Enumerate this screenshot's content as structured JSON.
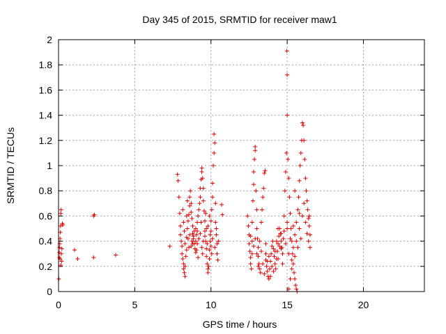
{
  "chart_data": {
    "type": "scatter",
    "title": "Day 345 of 2015, SRMTID for receiver maw1",
    "xlabel": "GPS time / hours",
    "ylabel": "SRMTID / TECUs",
    "xlim": [
      0,
      24
    ],
    "ylim": [
      0,
      2
    ],
    "xticks": [
      "0",
      "5",
      "10",
      "15",
      "20"
    ],
    "yticks": [
      "0",
      "0.2",
      "0.4",
      "0.6",
      "0.8",
      "1",
      "1.2",
      "1.4",
      "1.6",
      "1.8",
      "2"
    ],
    "xtick_values": [
      0,
      5,
      10,
      15,
      20
    ],
    "ytick_values": [
      0,
      0.2,
      0.4,
      0.6,
      0.8,
      1,
      1.2,
      1.4,
      1.6,
      1.8,
      2
    ],
    "grid": true,
    "marker": "plus",
    "color": "#e00000",
    "series": [
      {
        "points": [
          [
            0.02,
            0.1
          ],
          [
            0.05,
            0.27
          ],
          [
            0.07,
            0.35
          ],
          [
            0.08,
            0.38
          ],
          [
            0.1,
            0.42
          ],
          [
            0.12,
            0.47
          ],
          [
            0.13,
            0.52
          ],
          [
            0.15,
            0.62
          ],
          [
            0.17,
            0.65
          ],
          [
            0.18,
            0.3
          ],
          [
            0.2,
            0.24
          ],
          [
            0.22,
            0.34
          ],
          [
            0.25,
            0.54
          ],
          [
            0.28,
            0.53
          ],
          [
            0.05,
            0.31
          ],
          [
            0.1,
            0.26
          ],
          [
            0.15,
            0.21
          ],
          [
            1.05,
            0.33
          ],
          [
            1.25,
            0.26
          ],
          [
            2.3,
            0.27
          ],
          [
            2.3,
            0.6
          ],
          [
            2.35,
            0.61
          ],
          [
            3.75,
            0.29
          ],
          [
            7.3,
            0.36
          ],
          [
            7.8,
            0.93
          ],
          [
            7.85,
            0.88
          ],
          [
            7.9,
            0.75
          ],
          [
            7.95,
            0.62
          ],
          [
            8.0,
            0.52
          ],
          [
            8.0,
            0.45
          ],
          [
            8.05,
            0.4
          ],
          [
            8.1,
            0.36
          ],
          [
            8.1,
            0.3
          ],
          [
            8.15,
            0.26
          ],
          [
            8.2,
            0.22
          ],
          [
            8.2,
            0.18
          ],
          [
            8.25,
            0.15
          ],
          [
            8.3,
            0.12
          ],
          [
            8.3,
            0.2
          ],
          [
            8.35,
            0.28
          ],
          [
            8.4,
            0.33
          ],
          [
            8.4,
            0.43
          ],
          [
            8.45,
            0.5
          ],
          [
            8.5,
            0.56
          ],
          [
            8.55,
            0.61
          ],
          [
            8.6,
            0.68
          ],
          [
            8.6,
            0.75
          ],
          [
            8.65,
            0.8
          ],
          [
            8.7,
            0.7
          ],
          [
            8.7,
            0.63
          ],
          [
            8.75,
            0.58
          ],
          [
            8.8,
            0.52
          ],
          [
            8.8,
            0.46
          ],
          [
            8.85,
            0.42
          ],
          [
            8.9,
            0.38
          ],
          [
            8.95,
            0.34
          ],
          [
            9.0,
            0.31
          ],
          [
            9.0,
            0.4
          ],
          [
            9.05,
            0.45
          ],
          [
            9.1,
            0.48
          ],
          [
            9.1,
            0.55
          ],
          [
            9.15,
            0.6
          ],
          [
            9.2,
            0.65
          ],
          [
            9.25,
            0.7
          ],
          [
            9.3,
            0.75
          ],
          [
            9.3,
            0.82
          ],
          [
            9.35,
            0.89
          ],
          [
            9.4,
            0.95
          ],
          [
            9.4,
            0.98
          ],
          [
            9.45,
            0.9
          ],
          [
            9.5,
            0.82
          ],
          [
            9.5,
            0.72
          ],
          [
            9.55,
            0.64
          ],
          [
            9.6,
            0.56
          ],
          [
            9.6,
            0.48
          ],
          [
            9.65,
            0.4
          ],
          [
            9.7,
            0.34
          ],
          [
            9.7,
            0.28
          ],
          [
            9.75,
            0.22
          ],
          [
            9.8,
            0.18
          ],
          [
            9.8,
            0.15
          ],
          [
            9.85,
            0.2
          ],
          [
            9.9,
            0.26
          ],
          [
            9.9,
            0.33
          ],
          [
            9.95,
            0.4
          ],
          [
            10.0,
            0.48
          ],
          [
            10.0,
            0.56
          ],
          [
            10.05,
            0.65
          ],
          [
            10.1,
            0.75
          ],
          [
            10.1,
            0.86
          ],
          [
            10.15,
            1.0
          ],
          [
            10.2,
            1.1
          ],
          [
            10.2,
            1.25
          ],
          [
            10.25,
            1.18
          ],
          [
            10.3,
            0.7
          ],
          [
            10.3,
            0.55
          ],
          [
            10.35,
            0.45
          ],
          [
            10.4,
            0.38
          ],
          [
            10.4,
            0.3
          ],
          [
            10.45,
            0.25
          ],
          [
            10.5,
            0.4
          ],
          [
            10.7,
            0.69
          ],
          [
            10.75,
            0.61
          ],
          [
            8.2,
            0.55
          ],
          [
            8.4,
            0.6
          ],
          [
            8.6,
            0.45
          ],
          [
            8.8,
            0.38
          ],
          [
            9.0,
            0.5
          ],
          [
            9.2,
            0.42
          ],
          [
            9.4,
            0.35
          ],
          [
            9.6,
            0.44
          ],
          [
            9.8,
            0.52
          ],
          [
            10.0,
            0.36
          ],
          [
            8.3,
            0.38
          ],
          [
            8.5,
            0.42
          ],
          [
            8.7,
            0.36
          ],
          [
            8.9,
            0.48
          ],
          [
            9.1,
            0.38
          ],
          [
            9.3,
            0.46
          ],
          [
            9.5,
            0.4
          ],
          [
            9.7,
            0.5
          ],
          [
            9.9,
            0.6
          ],
          [
            10.1,
            0.42
          ],
          [
            8.15,
            0.65
          ],
          [
            8.45,
            0.72
          ],
          [
            8.75,
            0.4
          ],
          [
            9.05,
            0.33
          ],
          [
            9.35,
            0.55
          ],
          [
            9.65,
            0.62
          ],
          [
            9.95,
            0.45
          ],
          [
            10.25,
            0.35
          ],
          [
            8.25,
            0.48
          ],
          [
            8.55,
            0.35
          ],
          [
            8.85,
            0.44
          ],
          [
            9.15,
            0.27
          ],
          [
            9.45,
            0.3
          ],
          [
            9.75,
            0.38
          ],
          [
            10.05,
            0.3
          ],
          [
            10.35,
            0.5
          ],
          [
            12.4,
            0.6
          ],
          [
            12.45,
            0.52
          ],
          [
            12.5,
            0.45
          ],
          [
            12.5,
            0.38
          ],
          [
            12.55,
            0.32
          ],
          [
            12.6,
            0.27
          ],
          [
            12.6,
            0.22
          ],
          [
            12.65,
            0.18
          ],
          [
            12.7,
            0.4
          ],
          [
            12.7,
            0.55
          ],
          [
            12.75,
            0.72
          ],
          [
            12.8,
            0.85
          ],
          [
            12.8,
            0.95
          ],
          [
            12.85,
            1.05
          ],
          [
            12.9,
            1.12
          ],
          [
            12.9,
            1.15
          ],
          [
            12.95,
            0.8
          ],
          [
            13.0,
            0.65
          ],
          [
            13.0,
            0.5
          ],
          [
            13.05,
            0.42
          ],
          [
            13.1,
            0.35
          ],
          [
            13.1,
            0.28
          ],
          [
            13.15,
            0.22
          ],
          [
            13.2,
            0.18
          ],
          [
            13.25,
            0.15
          ],
          [
            13.3,
            0.55
          ],
          [
            13.35,
            0.65
          ],
          [
            13.4,
            0.75
          ],
          [
            13.45,
            0.82
          ],
          [
            13.5,
            0.94
          ],
          [
            13.55,
            0.96
          ],
          [
            13.6,
            0.3
          ],
          [
            13.6,
            0.25
          ],
          [
            13.65,
            0.2
          ],
          [
            13.7,
            0.16
          ],
          [
            13.75,
            0.12
          ],
          [
            13.8,
            0.1
          ],
          [
            13.85,
            0.18
          ],
          [
            13.9,
            0.24
          ],
          [
            13.95,
            0.3
          ],
          [
            14.0,
            0.36
          ],
          [
            14.05,
            0.4
          ],
          [
            14.1,
            0.34
          ],
          [
            14.15,
            0.28
          ],
          [
            14.2,
            0.22
          ],
          [
            14.25,
            0.18
          ],
          [
            14.3,
            0.26
          ],
          [
            14.35,
            0.32
          ],
          [
            14.4,
            0.38
          ],
          [
            14.45,
            0.44
          ],
          [
            14.5,
            0.5
          ],
          [
            14.55,
            0.46
          ],
          [
            14.6,
            0.4
          ],
          [
            14.65,
            0.35
          ],
          [
            14.7,
            0.3
          ],
          [
            14.75,
            0.42
          ],
          [
            14.8,
            0.6
          ],
          [
            14.85,
            0.8
          ],
          [
            14.9,
            0.95
          ],
          [
            14.95,
            1.1
          ],
          [
            15.0,
            1.4
          ],
          [
            15.0,
            1.72
          ],
          [
            14.98,
            1.91
          ],
          [
            15.05,
            1.05
          ],
          [
            15.1,
            0.9
          ],
          [
            15.15,
            0.75
          ],
          [
            15.2,
            0.62
          ],
          [
            15.25,
            0.5
          ],
          [
            15.3,
            0.4
          ],
          [
            15.35,
            0.3
          ],
          [
            15.4,
            0.22
          ],
          [
            15.45,
            0.15
          ],
          [
            15.5,
            0.1
          ],
          [
            15.55,
            0.05
          ],
          [
            15.6,
            0.02
          ],
          [
            15.65,
            0.0
          ],
          [
            15.1,
            0.02
          ],
          [
            15.2,
            0.1
          ],
          [
            15.3,
            0.25
          ],
          [
            15.4,
            0.35
          ],
          [
            15.5,
            0.45
          ],
          [
            15.6,
            0.55
          ],
          [
            15.7,
            0.65
          ],
          [
            15.75,
            0.75
          ],
          [
            15.8,
            0.88
          ],
          [
            15.85,
            1.0
          ],
          [
            15.9,
            1.1
          ],
          [
            15.95,
            1.2
          ],
          [
            16.0,
            1.34
          ],
          [
            16.05,
            1.32
          ],
          [
            16.1,
            1.2
          ],
          [
            16.15,
            1.05
          ],
          [
            16.2,
            0.9
          ],
          [
            16.25,
            0.8
          ],
          [
            16.3,
            0.72
          ],
          [
            16.35,
            0.65
          ],
          [
            16.4,
            0.58
          ],
          [
            16.45,
            0.52
          ],
          [
            16.5,
            0.45
          ],
          [
            16.5,
            0.35
          ],
          [
            16.45,
            0.6
          ],
          [
            12.6,
            0.44
          ],
          [
            12.8,
            0.36
          ],
          [
            13.0,
            0.3
          ],
          [
            13.2,
            0.4
          ],
          [
            13.4,
            0.22
          ],
          [
            13.6,
            0.38
          ],
          [
            13.8,
            0.28
          ],
          [
            14.0,
            0.2
          ],
          [
            14.2,
            0.32
          ],
          [
            14.4,
            0.26
          ],
          [
            14.6,
            0.34
          ],
          [
            14.8,
            0.48
          ],
          [
            15.0,
            0.55
          ],
          [
            15.2,
            0.42
          ],
          [
            15.4,
            0.52
          ],
          [
            15.6,
            0.4
          ],
          [
            15.8,
            0.5
          ],
          [
            16.0,
            0.6
          ],
          [
            16.2,
            0.55
          ],
          [
            16.4,
            0.4
          ],
          [
            12.7,
            0.3
          ],
          [
            12.9,
            0.42
          ],
          [
            13.1,
            0.2
          ],
          [
            13.3,
            0.32
          ],
          [
            13.5,
            0.14
          ],
          [
            13.7,
            0.24
          ],
          [
            13.9,
            0.12
          ],
          [
            14.1,
            0.16
          ],
          [
            14.3,
            0.4
          ],
          [
            14.5,
            0.36
          ],
          [
            14.7,
            0.22
          ],
          [
            14.9,
            0.38
          ],
          [
            15.1,
            0.3
          ],
          [
            15.3,
            0.18
          ],
          [
            15.5,
            0.28
          ],
          [
            15.7,
            0.35
          ],
          [
            15.9,
            0.42
          ],
          [
            16.1,
            0.7
          ],
          [
            16.3,
            0.46
          ],
          [
            14.4,
            0.5
          ],
          [
            14.6,
            0.46
          ],
          [
            15.0,
            0.5
          ],
          [
            15.5,
            0.8
          ],
          [
            15.8,
            0.62
          ]
        ]
      }
    ]
  }
}
